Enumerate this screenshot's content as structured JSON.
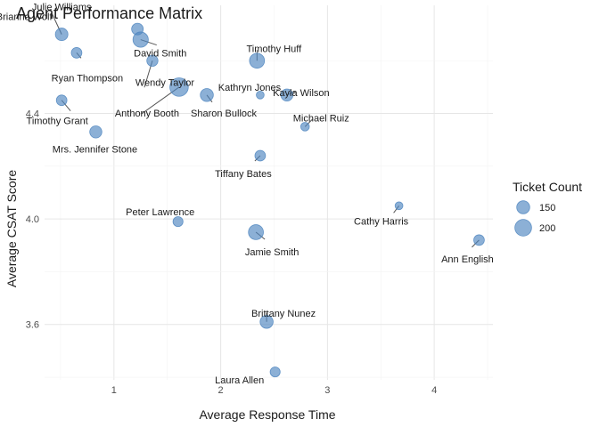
{
  "chart_data": {
    "type": "scatter",
    "title": "Agent Performance Matrix",
    "xlabel": "Average Response Time",
    "ylabel": "Average CSAT Score",
    "xlim": [
      0.35,
      4.55
    ],
    "ylim": [
      3.39,
      4.81
    ],
    "x_ticks": [
      1,
      2,
      3,
      4
    ],
    "y_ticks": [
      3.6,
      4.0,
      4.4
    ],
    "y_tick_labels": [
      "3.6",
      "4.0",
      "4.4"
    ],
    "grid": true,
    "point_color": "#4f86c0",
    "size_variable": "Ticket Count",
    "legend": {
      "title": "Ticket Count",
      "position": "right",
      "entries": [
        {
          "label": "150",
          "value": 150
        },
        {
          "label": "200",
          "value": 200
        }
      ]
    },
    "points": [
      {
        "name": "Brianna Wolf",
        "x": 0.51,
        "y": 4.7,
        "size": 145
      },
      {
        "name": "Julie Williams",
        "x": 1.22,
        "y": 4.72,
        "size": 135
      },
      {
        "name": "David Smith",
        "x": 1.25,
        "y": 4.68,
        "size": 180
      },
      {
        "name": "Ryan Thompson",
        "x": 0.65,
        "y": 4.63,
        "size": 125
      },
      {
        "name": "Wendy Taylor",
        "x": 1.36,
        "y": 4.6,
        "size": 130
      },
      {
        "name": "Anthony Booth",
        "x": 1.61,
        "y": 4.5,
        "size": 230
      },
      {
        "name": "Timothy Huff",
        "x": 2.34,
        "y": 4.6,
        "size": 175
      },
      {
        "name": "Kathryn Jones",
        "x": 2.37,
        "y": 4.47,
        "size": 105
      },
      {
        "name": "Kayla Wilson",
        "x": 2.62,
        "y": 4.47,
        "size": 140
      },
      {
        "name": "Sharon Bullock",
        "x": 1.87,
        "y": 4.47,
        "size": 150
      },
      {
        "name": "Timothy Grant",
        "x": 0.51,
        "y": 4.45,
        "size": 125
      },
      {
        "name": "Michael Ruiz",
        "x": 2.79,
        "y": 4.35,
        "size": 110
      },
      {
        "name": "Mrs. Jennifer Stone",
        "x": 0.83,
        "y": 4.33,
        "size": 140
      },
      {
        "name": "Tiffany Bates",
        "x": 2.37,
        "y": 4.24,
        "size": 125
      },
      {
        "name": "Cathy Harris",
        "x": 3.67,
        "y": 4.05,
        "size": 105
      },
      {
        "name": "Peter Lawrence",
        "x": 1.6,
        "y": 3.99,
        "size": 120
      },
      {
        "name": "Jamie Smith",
        "x": 2.33,
        "y": 3.95,
        "size": 175
      },
      {
        "name": "Ann English",
        "x": 4.42,
        "y": 3.92,
        "size": 125
      },
      {
        "name": "Brittany Nunez",
        "x": 2.43,
        "y": 3.61,
        "size": 150
      },
      {
        "name": "Laura Allen",
        "x": 2.51,
        "y": 3.42,
        "size": 120
      }
    ]
  }
}
